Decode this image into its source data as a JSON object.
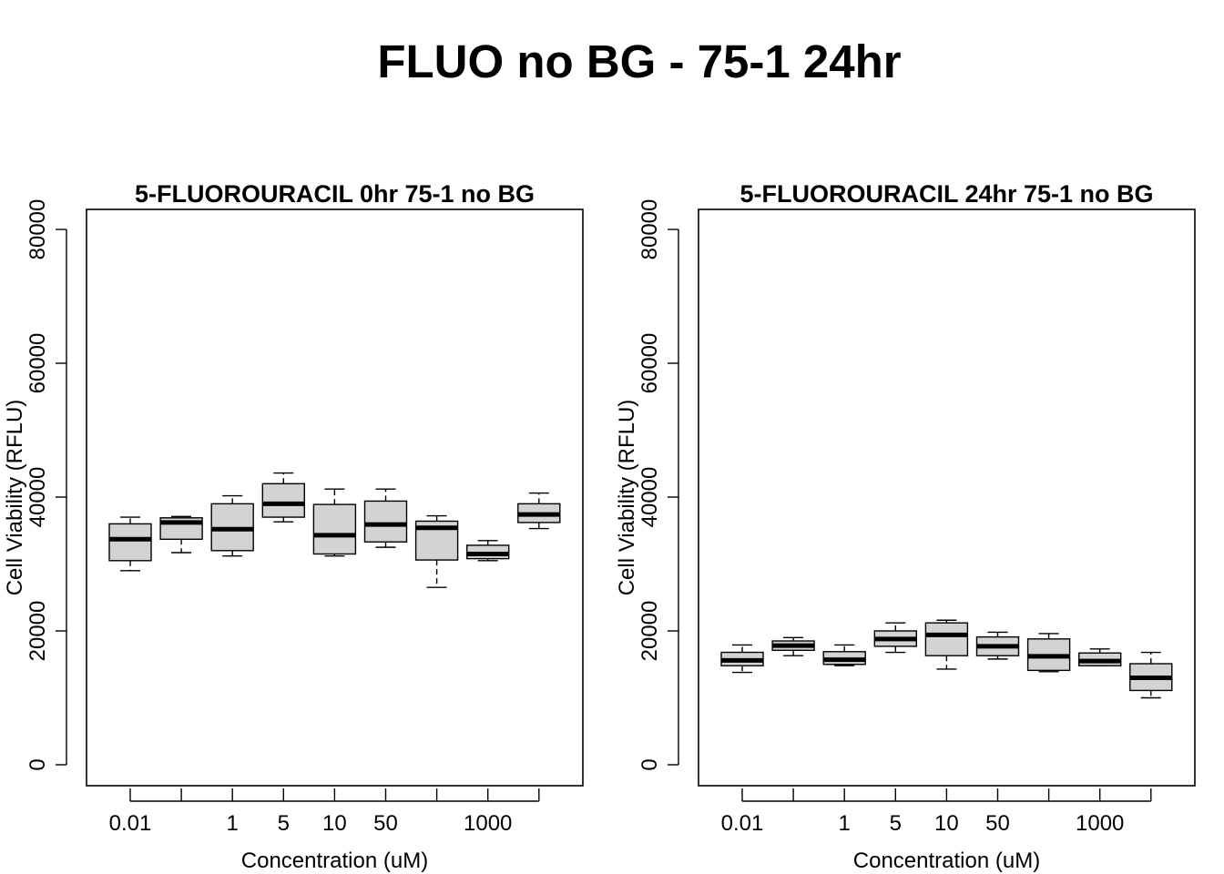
{
  "figure": {
    "title": "FLUO no BG - 75-1 24hr"
  },
  "chart_data": [
    {
      "type": "box",
      "title": "5-FLUOROURACIL 0hr 75-1 no BG",
      "xlabel": "Concentration (uM)",
      "ylabel": "Cell Viability (RFLU)",
      "ylim": [
        0,
        80000
      ],
      "yticks": [
        "0",
        "20000",
        "40000",
        "60000",
        "80000"
      ],
      "xtick_labels": [
        "0.01",
        "",
        "1",
        "5",
        "10",
        "50",
        "",
        "1000",
        ""
      ],
      "grid": false,
      "boxes": [
        {
          "min": 29000,
          "q1": 30500,
          "median": 33700,
          "q3": 36000,
          "max": 37000
        },
        {
          "min": 31700,
          "q1": 33700,
          "median": 36200,
          "q3": 36900,
          "max": 37100
        },
        {
          "min": 31200,
          "q1": 32000,
          "median": 35200,
          "q3": 39000,
          "max": 40200
        },
        {
          "min": 36300,
          "q1": 37000,
          "median": 39000,
          "q3": 42000,
          "max": 43600
        },
        {
          "min": 31200,
          "q1": 31500,
          "median": 34300,
          "q3": 38900,
          "max": 41200
        },
        {
          "min": 32500,
          "q1": 33300,
          "median": 35900,
          "q3": 39400,
          "max": 41200
        },
        {
          "min": 26500,
          "q1": 30600,
          "median": 35400,
          "q3": 36400,
          "max": 37200
        },
        {
          "min": 30500,
          "q1": 30800,
          "median": 31500,
          "q3": 32800,
          "max": 33500
        },
        {
          "min": 35300,
          "q1": 36200,
          "median": 37400,
          "q3": 39000,
          "max": 40600
        }
      ]
    },
    {
      "type": "box",
      "title": "5-FLUOROURACIL 24hr 75-1 no BG",
      "xlabel": "Concentration (uM)",
      "ylabel": "Cell Viability (RFLU)",
      "ylim": [
        0,
        80000
      ],
      "yticks": [
        "0",
        "20000",
        "40000",
        "60000",
        "80000"
      ],
      "xtick_labels": [
        "0.01",
        "",
        "1",
        "5",
        "10",
        "50",
        "",
        "1000",
        ""
      ],
      "grid": false,
      "boxes": [
        {
          "min": 13800,
          "q1": 14800,
          "median": 15600,
          "q3": 16800,
          "max": 17900
        },
        {
          "min": 16300,
          "q1": 17100,
          "median": 17800,
          "q3": 18500,
          "max": 19000
        },
        {
          "min": 14800,
          "q1": 15000,
          "median": 15700,
          "q3": 16900,
          "max": 17900
        },
        {
          "min": 16800,
          "q1": 17700,
          "median": 18800,
          "q3": 20000,
          "max": 21200
        },
        {
          "min": 14300,
          "q1": 16300,
          "median": 19400,
          "q3": 21200,
          "max": 21600
        },
        {
          "min": 15800,
          "q1": 16300,
          "median": 17700,
          "q3": 19100,
          "max": 19800
        },
        {
          "min": 13900,
          "q1": 14100,
          "median": 16200,
          "q3": 18800,
          "max": 19600
        },
        {
          "min": 14800,
          "q1": 14800,
          "median": 15500,
          "q3": 16700,
          "max": 17300
        },
        {
          "min": 10000,
          "q1": 11100,
          "median": 13000,
          "q3": 15100,
          "max": 16800
        }
      ]
    }
  ]
}
